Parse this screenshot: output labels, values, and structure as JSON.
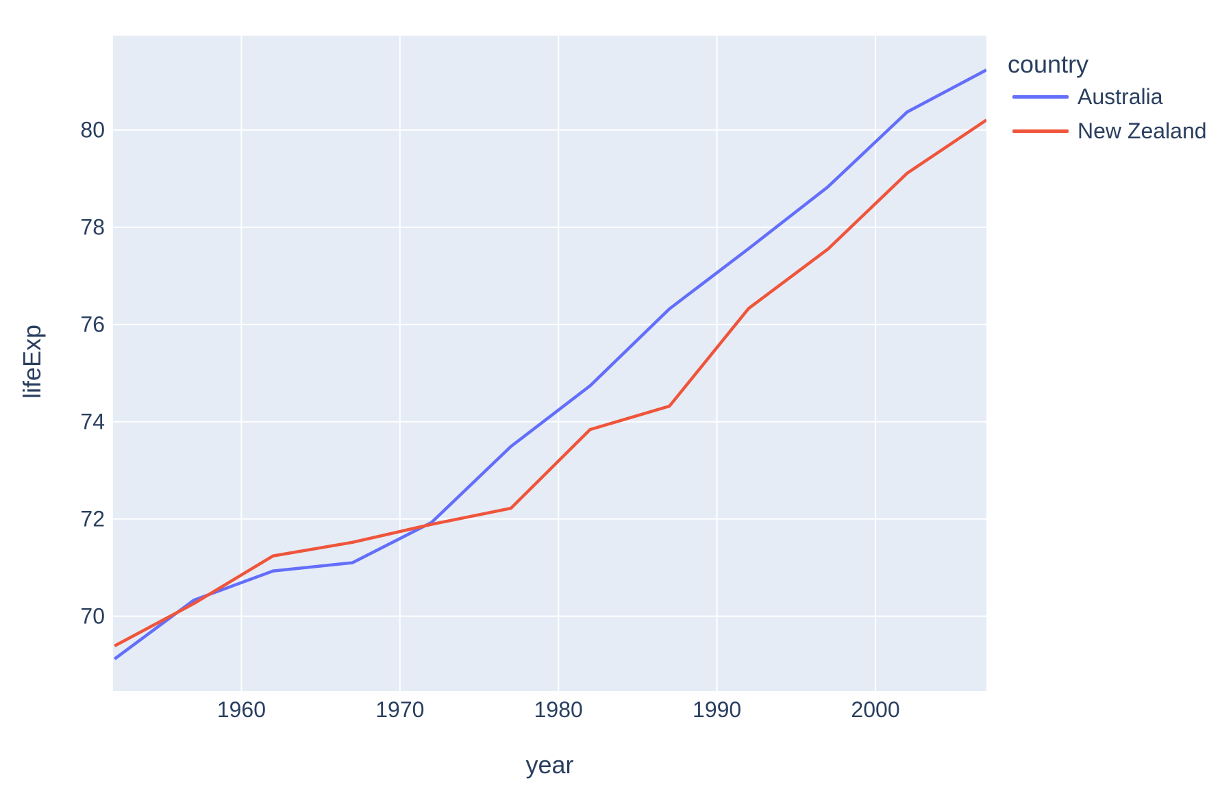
{
  "figure": {
    "background": "#ffffff",
    "plot_background": "#e5ecf6",
    "grid_color": "#ffffff",
    "text_color": "#2a3f5f"
  },
  "chart_data": {
    "type": "line",
    "title": "",
    "xlabel": "year",
    "ylabel": "lifeExp",
    "x": [
      1952,
      1957,
      1962,
      1967,
      1972,
      1977,
      1982,
      1987,
      1992,
      1997,
      2002,
      2007
    ],
    "series": [
      {
        "name": "Australia",
        "color": "#636efa",
        "values": [
          69.12,
          70.33,
          70.93,
          71.1,
          71.93,
          73.49,
          74.74,
          76.32,
          77.56,
          78.83,
          80.37,
          81.235
        ]
      },
      {
        "name": "New Zealand",
        "color": "#ef553b",
        "values": [
          69.39,
          70.26,
          71.24,
          71.52,
          71.89,
          72.22,
          73.84,
          74.32,
          76.33,
          77.55,
          79.11,
          80.204
        ]
      }
    ],
    "xlim": [
      1951.9,
      2007.0
    ],
    "ylim": [
      68.46,
      81.94
    ],
    "xticks": [
      1960,
      1970,
      1980,
      1990,
      2000
    ],
    "yticks": [
      70,
      72,
      74,
      76,
      78,
      80
    ],
    "grid": true,
    "legend": {
      "title": "country",
      "position": "right"
    }
  }
}
